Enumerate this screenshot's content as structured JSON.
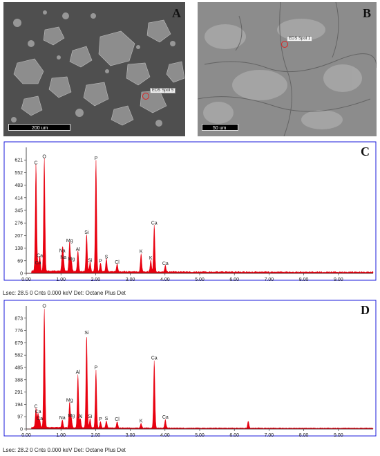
{
  "colors": {
    "spectrum": "#e8000f",
    "frame": "#1a1adb",
    "axis": "#222222"
  },
  "sem_images": [
    {
      "letter": "A",
      "spot_label": "EDS Spot 5",
      "scale_label": "200 um"
    },
    {
      "letter": "B",
      "spot_label": "EDS Spot 1",
      "scale_label": "50 um"
    }
  ],
  "chart_data": [
    {
      "type": "line",
      "panel": "C",
      "xlabel": "",
      "ylabel": "",
      "xlim": [
        0,
        10.0
      ],
      "ylim": [
        0,
        690
      ],
      "x_ticks": [
        "0.00",
        "1.00",
        "2.00",
        "3.00",
        "4.00",
        "5.00",
        "6.00",
        "7.00",
        "8.00",
        "9.00"
      ],
      "y_ticks": [
        0,
        69,
        138,
        207,
        276,
        345,
        414,
        483,
        552,
        621
      ],
      "peaks": [
        {
          "x": 0.28,
          "y": 585,
          "label": "C"
        },
        {
          "x": 0.39,
          "y": 78,
          "label": "Ca"
        },
        {
          "x": 0.34,
          "y": 38,
          "label": "Ca"
        },
        {
          "x": 0.52,
          "y": 620,
          "label": "O"
        },
        {
          "x": 1.04,
          "y": 105,
          "label": "Na"
        },
        {
          "x": 1.07,
          "y": 68,
          "label": "Na"
        },
        {
          "x": 1.25,
          "y": 160,
          "label": "Mg"
        },
        {
          "x": 1.3,
          "y": 58,
          "label": "Mg"
        },
        {
          "x": 1.49,
          "y": 112,
          "label": "Al"
        },
        {
          "x": 1.74,
          "y": 205,
          "label": "Si"
        },
        {
          "x": 1.84,
          "y": 52,
          "label": "Si"
        },
        {
          "x": 2.01,
          "y": 610,
          "label": "P"
        },
        {
          "x": 2.14,
          "y": 48,
          "label": "P"
        },
        {
          "x": 2.31,
          "y": 70,
          "label": "S"
        },
        {
          "x": 2.62,
          "y": 42,
          "label": "Cl"
        },
        {
          "x": 3.31,
          "y": 100,
          "label": "K"
        },
        {
          "x": 3.59,
          "y": 65,
          "label": "K"
        },
        {
          "x": 3.69,
          "y": 255,
          "label": "Ca"
        },
        {
          "x": 4.01,
          "y": 35,
          "label": "Ca"
        }
      ],
      "status": "Lsec: 28.5 0 Cnts  0.000 keV Det: Octane Plus Det"
    },
    {
      "type": "line",
      "panel": "D",
      "xlabel": "",
      "ylabel": "",
      "xlim": [
        0,
        10.0
      ],
      "ylim": [
        0,
        970
      ],
      "x_ticks": [
        "0.00",
        "1.00",
        "2.00",
        "3.00",
        "4.00",
        "5.00",
        "6.00",
        "7.00",
        "8.00",
        "9.00"
      ],
      "y_ticks": [
        0,
        97,
        194,
        291,
        388,
        485,
        582,
        679,
        776,
        873
      ],
      "peaks": [
        {
          "x": 0.28,
          "y": 150,
          "label": "C"
        },
        {
          "x": 0.34,
          "y": 110,
          "label": "Ca"
        },
        {
          "x": 0.39,
          "y": 55,
          "label": "Ca"
        },
        {
          "x": 0.52,
          "y": 940,
          "label": "O"
        },
        {
          "x": 1.04,
          "y": 60,
          "label": "Na"
        },
        {
          "x": 1.25,
          "y": 200,
          "label": "Mg"
        },
        {
          "x": 1.3,
          "y": 75,
          "label": "Mg"
        },
        {
          "x": 1.49,
          "y": 420,
          "label": "Al"
        },
        {
          "x": 1.56,
          "y": 70,
          "label": "Al"
        },
        {
          "x": 1.74,
          "y": 730,
          "label": "Si"
        },
        {
          "x": 1.84,
          "y": 70,
          "label": "Si"
        },
        {
          "x": 2.01,
          "y": 455,
          "label": "P"
        },
        {
          "x": 2.14,
          "y": 50,
          "label": "P"
        },
        {
          "x": 2.31,
          "y": 55,
          "label": "S"
        },
        {
          "x": 2.62,
          "y": 50,
          "label": "Cl"
        },
        {
          "x": 3.31,
          "y": 35,
          "label": "K"
        },
        {
          "x": 3.69,
          "y": 530,
          "label": "Ca"
        },
        {
          "x": 4.01,
          "y": 65,
          "label": "Ca"
        },
        {
          "x": 6.4,
          "y": 55,
          "label": ""
        }
      ],
      "status": "Lsec: 28.2 0 Cnts  0.000 keV Det: Octane Plus Det"
    }
  ]
}
